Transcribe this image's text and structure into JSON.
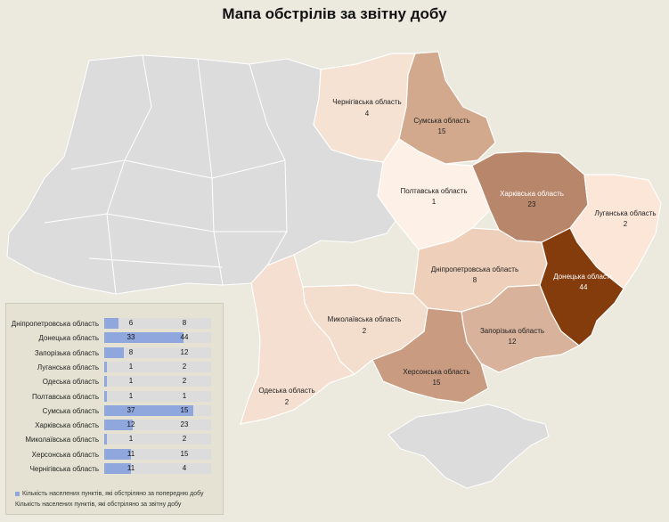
{
  "title": "Мапа обстрілів за звітну добу",
  "colors": {
    "background": "#ece9df",
    "no_data": "#dcdcdc",
    "level_1": "#f6e2d3",
    "level_2": "#eecfb9",
    "level_3": "#d3a98e",
    "level_4": "#b8866a",
    "level_5": "#843c0c",
    "bar": "#8fa7dc"
  },
  "regions": [
    {
      "name": "Чернігівська область",
      "value": "4"
    },
    {
      "name": "Сумська область",
      "value": "15"
    },
    {
      "name": "Полтавська область",
      "value": "1"
    },
    {
      "name": "Харківська область",
      "value": "23"
    },
    {
      "name": "Луганська область",
      "value": "2"
    },
    {
      "name": "Дніпропетровська область",
      "value": "8"
    },
    {
      "name": "Донецька область",
      "value": "44"
    },
    {
      "name": "Миколаївська область",
      "value": "2"
    },
    {
      "name": "Запорізька область",
      "value": "12"
    },
    {
      "name": "Херсонська область",
      "value": "15"
    },
    {
      "name": "Одеська область",
      "value": "2"
    }
  ],
  "table": {
    "rows": [
      {
        "name": "Дніпропетровська область",
        "prev": 6,
        "cur": 8
      },
      {
        "name": "Донецька область",
        "prev": 33,
        "cur": 44
      },
      {
        "name": "Запорізька область",
        "prev": 8,
        "cur": 12
      },
      {
        "name": "Луганська область",
        "prev": 1,
        "cur": 2
      },
      {
        "name": "Одеська область",
        "prev": 1,
        "cur": 2
      },
      {
        "name": "Полтавська область",
        "prev": 1,
        "cur": 1
      },
      {
        "name": "Сумська область",
        "prev": 37,
        "cur": 15
      },
      {
        "name": "Харківська область",
        "prev": 12,
        "cur": 23
      },
      {
        "name": "Миколаївська область",
        "prev": 1,
        "cur": 2
      },
      {
        "name": "Херсонська область",
        "prev": 11,
        "cur": 15
      },
      {
        "name": "Чернігівська область",
        "prev": 11,
        "cur": 4
      }
    ],
    "bar_max": 37,
    "legend_prev": "Кількість населених пунктів, які обстріляно за попередню добу",
    "legend_cur": "Кількість населених пунктів, які обстріляно за звітну добу"
  }
}
